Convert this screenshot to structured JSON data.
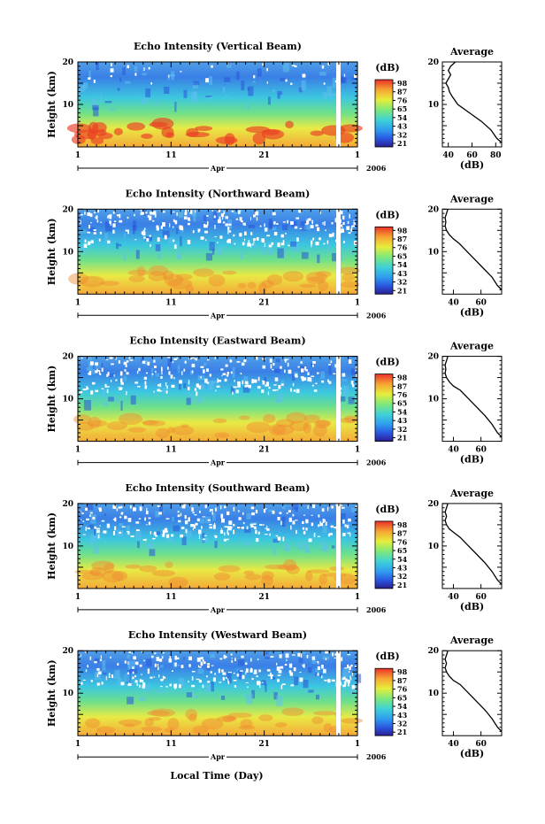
{
  "figure": {
    "xlabel": "Local Time (Day)",
    "month_label": "Apr",
    "year_label": "2006",
    "ylabel": "Height (km)",
    "colorbar_label": "(dB)",
    "profile_title": "Average",
    "profile_xlabel": "(dB)"
  },
  "colorbar": {
    "ticks": [
      "98",
      "87",
      "76",
      "65",
      "54",
      "43",
      "32",
      "21"
    ],
    "colors": [
      "#2a1d8f",
      "#2a55e0",
      "#2f9cf0",
      "#3fd2d6",
      "#7de87a",
      "#e6ee3c",
      "#f7a532",
      "#e8302a"
    ]
  },
  "chart_data": [
    {
      "type": "heatmap",
      "title": "Echo Intensity (Vertical Beam)",
      "xlabel": "Local Time (Day)",
      "ylabel": "Height (km)",
      "x_ticks": [
        "1",
        "11",
        "21",
        "1"
      ],
      "y_ticks": [
        "20",
        "10"
      ],
      "xlim": [
        1,
        31
      ],
      "ylim": [
        1,
        20
      ],
      "colorbar": {
        "label": "(dB)",
        "ticks": [
          98,
          87,
          76,
          65,
          54,
          43,
          32,
          21
        ]
      },
      "profile": {
        "type": "line",
        "title": "Average",
        "xlabel": "(dB)",
        "x_ticks": [
          "40",
          "60",
          "80"
        ],
        "y_ticks": [
          "20",
          "10"
        ],
        "xlim": [
          35,
          85
        ],
        "series": [
          {
            "x": [
              46,
              42,
              40,
              42,
              40,
              38,
              40,
              41,
              43,
              48,
              58,
              68,
              76,
              81,
              85
            ],
            "y": [
              20,
              19,
              18,
              17,
              16,
              15,
              14,
              13,
              12,
              10,
              8,
              6,
              4,
              2,
              1
            ]
          }
        ]
      }
    },
    {
      "type": "heatmap",
      "title": "Echo Intensity (Northward Beam)",
      "xlabel": "Local Time (Day)",
      "ylabel": "Height (km)",
      "x_ticks": [
        "1",
        "11",
        "21",
        "1"
      ],
      "y_ticks": [
        "20",
        "10"
      ],
      "xlim": [
        1,
        31
      ],
      "ylim": [
        1,
        20
      ],
      "colorbar": {
        "label": "(dB)",
        "ticks": [
          98,
          87,
          76,
          65,
          54,
          43,
          32,
          21
        ]
      },
      "profile": {
        "type": "line",
        "title": "Average",
        "xlabel": "(dB)",
        "x_ticks": [
          "40",
          "60"
        ],
        "y_ticks": [
          "20",
          "10"
        ],
        "xlim": [
          32,
          75
        ],
        "series": [
          {
            "x": [
              36,
              35,
              34,
              34.5,
              34,
              35,
              37,
              40,
              44,
              50,
              56,
              62,
              68,
              72,
              75
            ],
            "y": [
              20,
              19,
              18,
              17,
              16,
              15,
              14,
              13,
              12,
              10,
              8,
              6,
              4,
              2,
              1
            ]
          }
        ]
      }
    },
    {
      "type": "heatmap",
      "title": "Echo Intensity (Eastward Beam)",
      "xlabel": "Local Time (Day)",
      "ylabel": "Height (km)",
      "x_ticks": [
        "1",
        "11",
        "21",
        "1"
      ],
      "y_ticks": [
        "20",
        "10"
      ],
      "xlim": [
        1,
        31
      ],
      "ylim": [
        1,
        20
      ],
      "colorbar": {
        "label": "(dB)",
        "ticks": [
          98,
          87,
          76,
          65,
          54,
          43,
          32,
          21
        ]
      },
      "profile": {
        "type": "line",
        "title": "Average",
        "xlabel": "(dB)",
        "x_ticks": [
          "40",
          "60"
        ],
        "y_ticks": [
          "20",
          "10"
        ],
        "xlim": [
          32,
          75
        ],
        "series": [
          {
            "x": [
              36,
              35,
              34,
              34.5,
              34,
              35,
              37,
              40,
              45,
              51,
              57,
              63,
              68,
              72,
              75
            ],
            "y": [
              20,
              19,
              18,
              17,
              16,
              15,
              14,
              13,
              12,
              10,
              8,
              6,
              4,
              2,
              1
            ]
          }
        ]
      }
    },
    {
      "type": "heatmap",
      "title": "Echo Intensity (Southward Beam)",
      "xlabel": "Local Time (Day)",
      "ylabel": "Height (km)",
      "x_ticks": [
        "1",
        "11",
        "21",
        "1"
      ],
      "y_ticks": [
        "20",
        "10"
      ],
      "xlim": [
        1,
        31
      ],
      "ylim": [
        1,
        20
      ],
      "colorbar": {
        "label": "(dB)",
        "ticks": [
          98,
          87,
          76,
          65,
          54,
          43,
          32,
          21
        ]
      },
      "profile": {
        "type": "line",
        "title": "Average",
        "xlabel": "(dB)",
        "x_ticks": [
          "40",
          "60"
        ],
        "y_ticks": [
          "20",
          "10"
        ],
        "xlim": [
          32,
          75
        ],
        "series": [
          {
            "x": [
              36,
              35,
              34,
              35,
              34,
              35,
              37,
              41,
              45,
              51,
              57,
              63,
              68,
              72,
              75
            ],
            "y": [
              20,
              19,
              18,
              17,
              16,
              15,
              14,
              13,
              12,
              10,
              8,
              6,
              4,
              2,
              1
            ]
          }
        ]
      }
    },
    {
      "type": "heatmap",
      "title": "Echo Intensity (Westward Beam)",
      "xlabel": "Local Time (Day)",
      "ylabel": "Height (km)",
      "x_ticks": [
        "1",
        "11",
        "21",
        "1"
      ],
      "y_ticks": [
        "20",
        "10"
      ],
      "xlim": [
        1,
        31
      ],
      "ylim": [
        1,
        20
      ],
      "colorbar": {
        "label": "(dB)",
        "ticks": [
          98,
          87,
          76,
          65,
          54,
          43,
          32,
          21
        ]
      },
      "profile": {
        "type": "line",
        "title": "Average",
        "xlabel": "(dB)",
        "x_ticks": [
          "40",
          "60"
        ],
        "y_ticks": [
          "20",
          "10"
        ],
        "xlim": [
          32,
          75
        ],
        "series": [
          {
            "x": [
              36,
              35,
              34,
              35,
              34,
              35,
              37,
              40,
              45,
              51,
              57,
              63,
              68,
              72,
              75
            ],
            "y": [
              20,
              19,
              18,
              17,
              16,
              15,
              14,
              13,
              12,
              10,
              8,
              6,
              4,
              2,
              1
            ]
          }
        ]
      }
    }
  ]
}
